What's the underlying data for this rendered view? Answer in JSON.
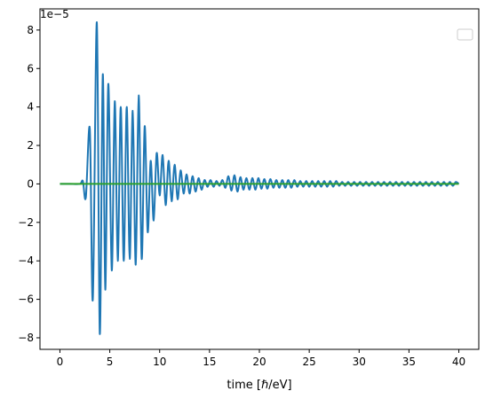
{
  "chart_data": {
    "type": "line",
    "xlabel": "time [ℏ/eV]",
    "ylabel": "",
    "title": "",
    "offset_label": "1e−5",
    "xlim": [
      -2.0,
      42.0
    ],
    "ylim": [
      -8.6,
      9.1
    ],
    "x_ticks": [
      0,
      5,
      10,
      15,
      20,
      25,
      30,
      35,
      40
    ],
    "y_ticks": [
      -8,
      -6,
      -4,
      -2,
      0,
      2,
      4,
      6,
      8
    ],
    "x_tick_labels": [
      "0",
      "5",
      "10",
      "15",
      "20",
      "25",
      "30",
      "35",
      "40"
    ],
    "y_tick_labels": [
      "−8",
      "−6",
      "−4",
      "−2",
      "0",
      "2",
      "4",
      "6",
      "8"
    ],
    "legend": {
      "entries": [],
      "placement": "top-right"
    },
    "series": [
      {
        "color": "#1f77b4",
        "x": [
          0,
          1,
          2,
          2.3,
          2.6,
          3.0,
          3.3,
          3.7,
          4.0,
          4.3,
          4.55,
          4.85,
          5.2,
          5.5,
          5.8,
          6.1,
          6.4,
          6.7,
          7.0,
          7.3,
          7.6,
          7.9,
          8.2,
          8.5,
          8.8,
          9.1,
          9.4,
          9.7,
          10.0,
          10.3,
          10.6,
          10.9,
          11.2,
          11.5,
          11.8,
          12.1,
          12.4,
          12.7,
          13.0,
          13.3,
          13.6,
          13.9,
          14.2,
          14.5,
          14.8,
          15.1,
          15.4,
          15.7,
          16.0,
          16.3,
          16.6,
          16.9,
          17.2,
          17.5,
          17.8,
          18.1,
          18.4,
          18.7,
          19.0,
          19.3,
          19.6,
          19.9,
          20.2,
          20.5,
          20.8,
          21.1,
          21.4,
          21.7,
          22.0,
          22.3,
          22.6,
          22.9,
          23.2,
          23.5,
          23.8,
          24.1,
          24.4,
          24.7,
          25.0,
          25.3,
          25.6,
          25.9,
          26.2,
          26.5,
          26.8,
          27.1,
          27.4,
          27.7,
          28.0,
          28.3,
          28.6,
          28.9,
          29.2,
          29.5,
          29.8,
          30.1,
          30.4,
          30.7,
          31.0,
          31.3,
          31.6,
          31.9,
          32.2,
          32.5,
          32.8,
          33.1,
          33.4,
          33.7,
          34.0,
          34.3,
          34.6,
          34.9,
          35.2,
          35.5,
          35.8,
          36.1,
          36.4,
          36.7,
          37.0,
          37.3,
          37.6,
          37.9,
          38.2,
          38.5,
          38.8,
          39.1,
          39.4,
          39.7,
          40.0
        ],
        "y": [
          0,
          0,
          0,
          0.15,
          -0.7,
          2.85,
          -6.0,
          8.4,
          -7.8,
          5.7,
          -5.5,
          5.2,
          -4.5,
          4.3,
          -4.0,
          4.0,
          -4.0,
          4.0,
          -3.9,
          3.8,
          -4.2,
          4.6,
          -3.9,
          3.0,
          -2.5,
          1.2,
          -1.9,
          1.6,
          -0.6,
          1.5,
          -1.1,
          1.2,
          -0.9,
          1.0,
          -0.8,
          0.7,
          -0.5,
          0.5,
          -0.5,
          0.4,
          -0.4,
          0.3,
          -0.3,
          0.2,
          -0.15,
          0.2,
          -0.15,
          0.15,
          -0.1,
          0.2,
          -0.2,
          0.4,
          -0.35,
          0.45,
          -0.4,
          0.35,
          -0.3,
          0.3,
          -0.3,
          0.3,
          -0.3,
          0.3,
          -0.25,
          0.25,
          -0.25,
          0.25,
          -0.2,
          0.2,
          -0.2,
          0.2,
          -0.2,
          0.2,
          -0.2,
          0.2,
          -0.15,
          0.15,
          -0.15,
          0.15,
          -0.15,
          0.15,
          -0.15,
          0.15,
          -0.15,
          0.15,
          -0.15,
          0.15,
          -0.15,
          0.15,
          -0.1,
          0.1,
          -0.1,
          0.1,
          -0.1,
          0.1,
          -0.1,
          0.1,
          -0.1,
          0.1,
          -0.1,
          0.1,
          -0.1,
          0.1,
          -0.1,
          0.1,
          -0.1,
          0.1,
          -0.1,
          0.1,
          -0.1,
          0.1,
          -0.1,
          0.1,
          -0.1,
          0.1,
          -0.1,
          0.1,
          -0.1,
          0.1,
          -0.1,
          0.1,
          -0.1,
          0.1,
          -0.1,
          0.1,
          -0.1,
          0.1,
          -0.1,
          0.1,
          0.0
        ]
      },
      {
        "color": "#2ca02c",
        "x": [
          0,
          40
        ],
        "y": [
          0,
          0
        ]
      }
    ]
  }
}
